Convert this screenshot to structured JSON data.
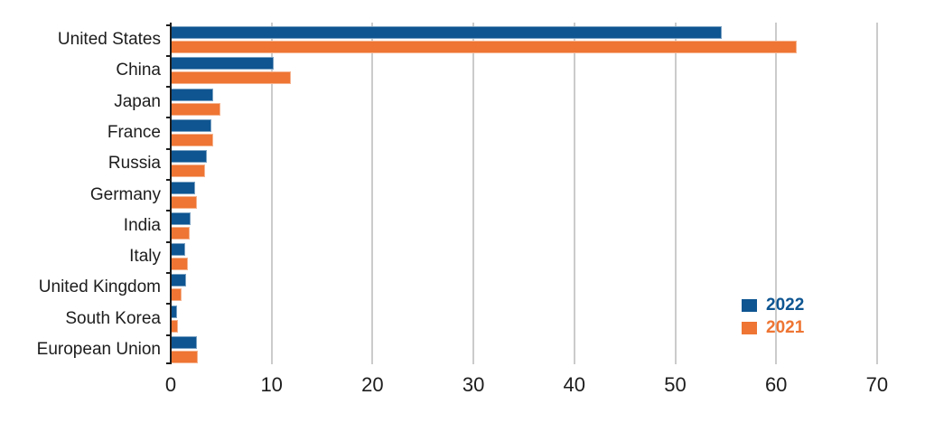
{
  "chart_data": {
    "type": "bar",
    "orientation": "horizontal",
    "categories": [
      "United States",
      "China",
      "Japan",
      "France",
      "Russia",
      "Germany",
      "India",
      "Italy",
      "United Kingdom",
      "South Korea",
      "European Union"
    ],
    "series": [
      {
        "name": "2022",
        "color": "#0e5591",
        "values": [
          54.6,
          10.2,
          4.2,
          4.0,
          3.6,
          2.4,
          2.0,
          1.4,
          1.5,
          0.65,
          2.6
        ]
      },
      {
        "name": "2021",
        "color": "#ee7533",
        "values": [
          62.0,
          11.9,
          4.9,
          4.2,
          3.4,
          2.6,
          1.9,
          1.7,
          1.1,
          0.7,
          2.7
        ]
      }
    ],
    "xlim": [
      0,
      70
    ],
    "x_ticks": [
      0,
      10,
      20,
      30,
      40,
      50,
      60,
      70
    ],
    "grid": "vertical-gridlines",
    "legend_position": "lower-right"
  },
  "colors": {
    "axis": "#1c1c1c",
    "grid": "#cbcbcb",
    "text": "#1d1d1d",
    "background": "#ffffff"
  }
}
